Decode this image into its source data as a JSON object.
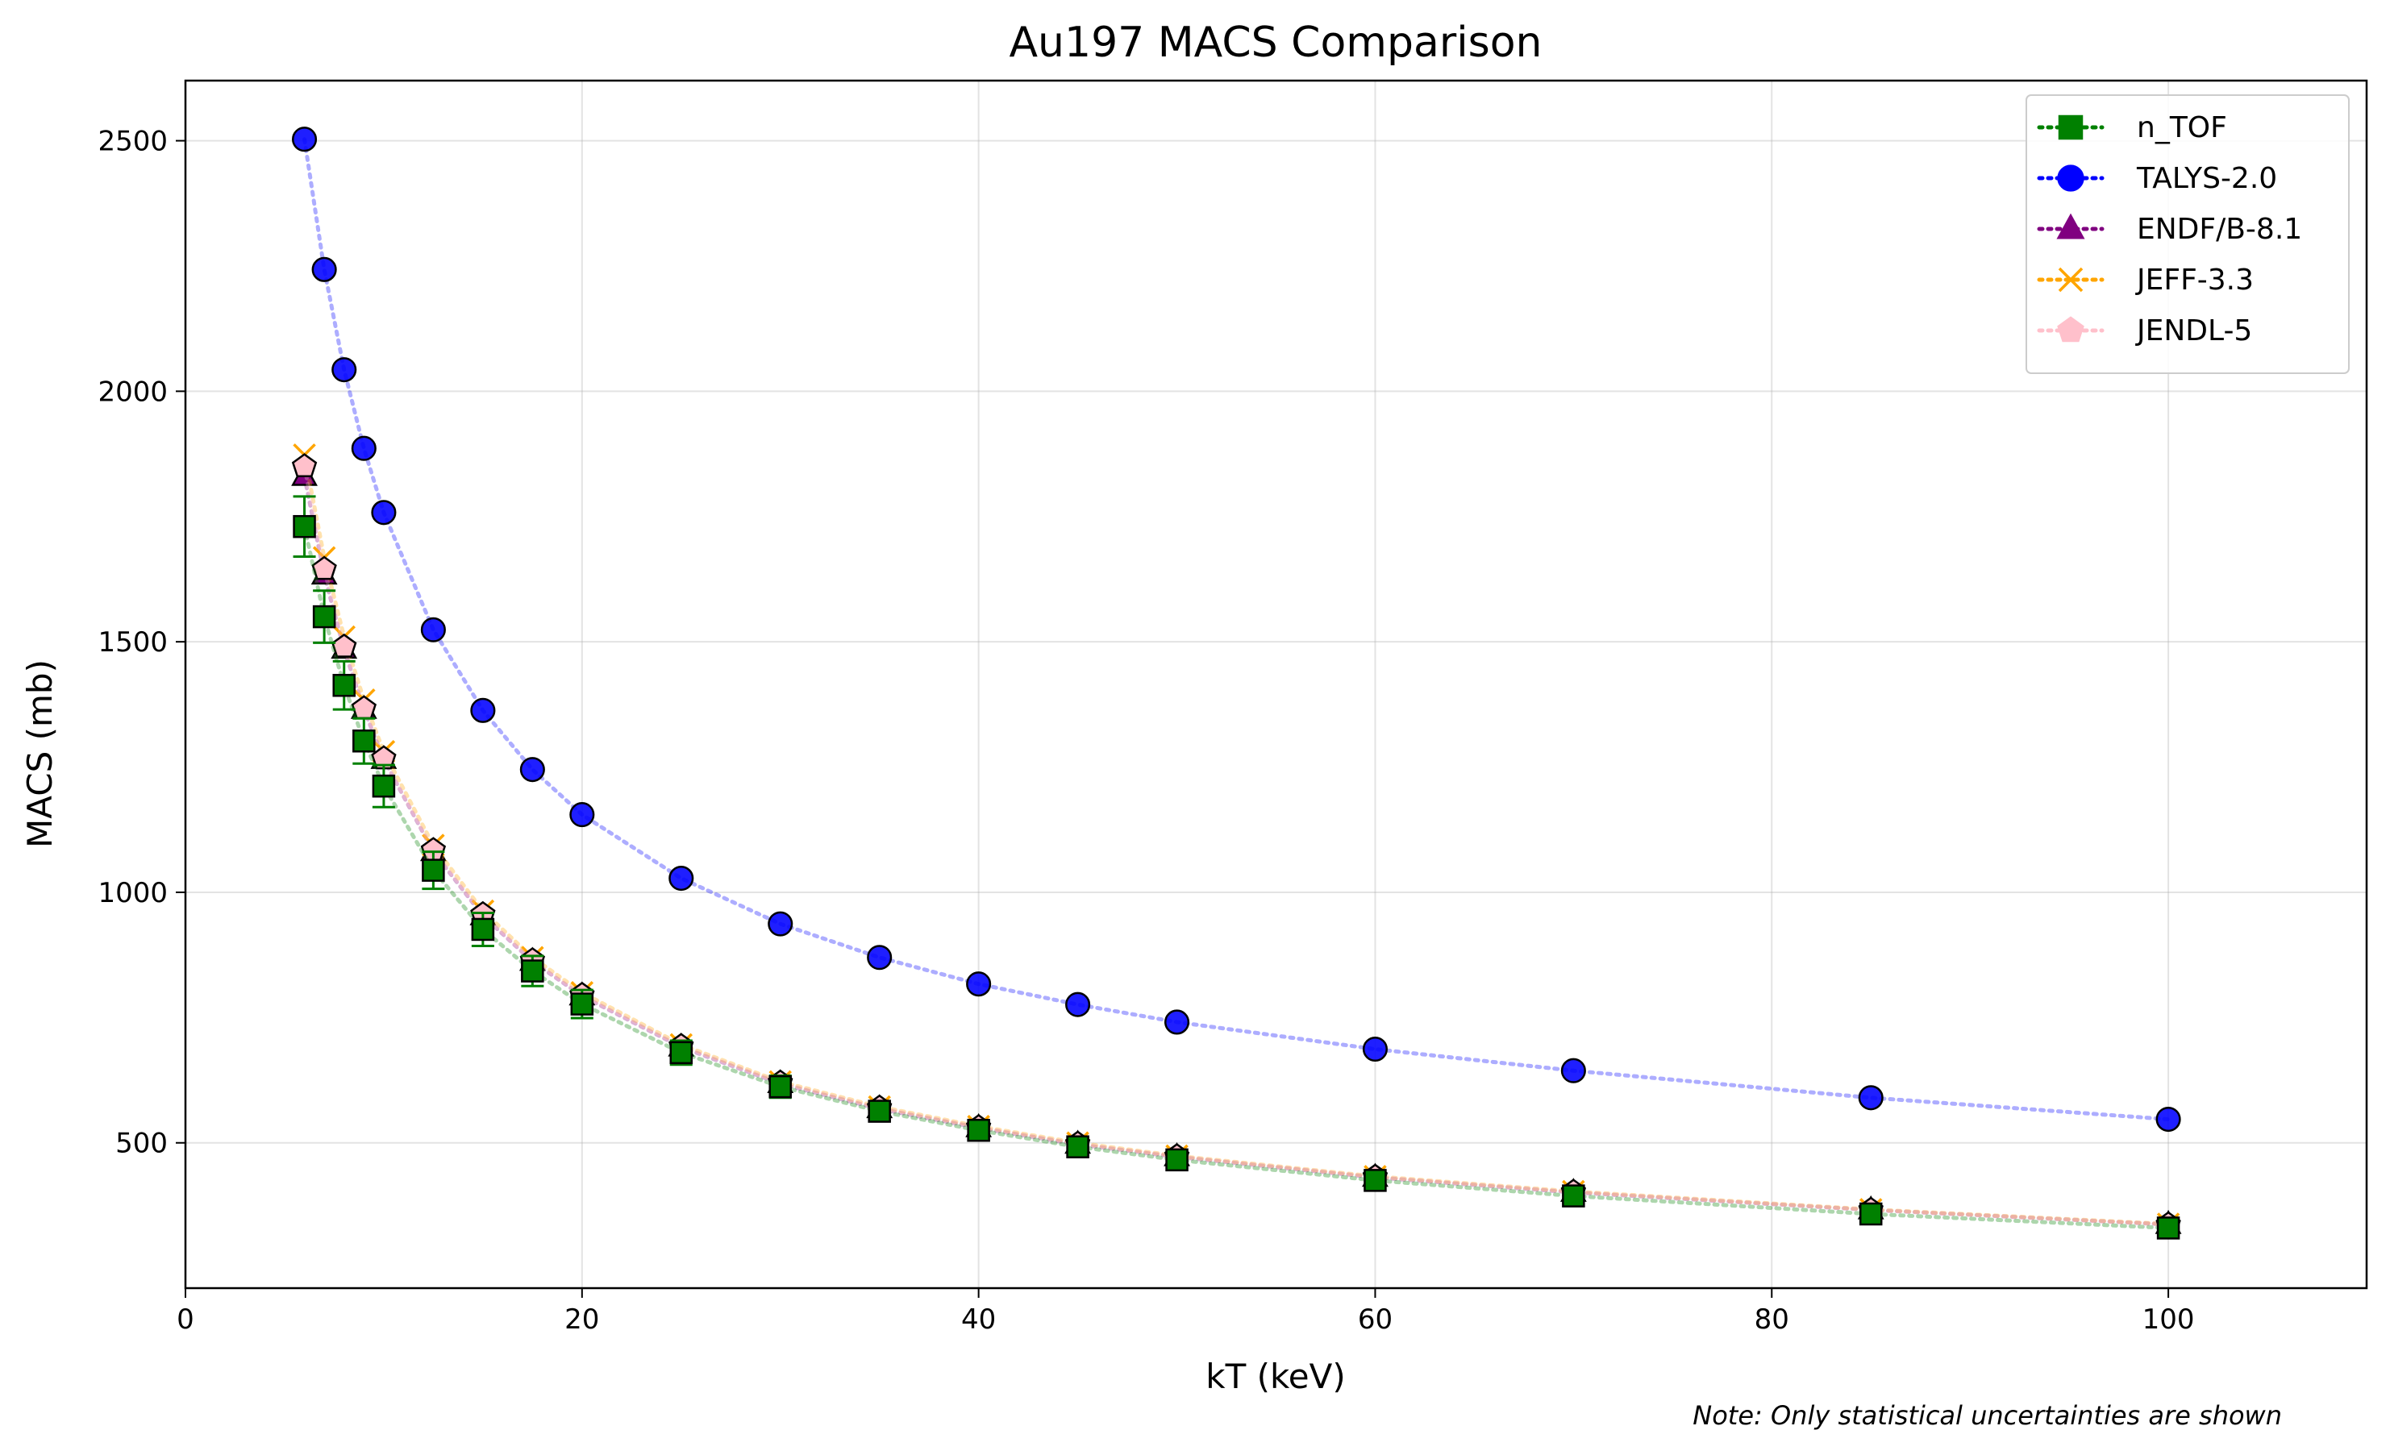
{
  "chart_data": {
    "type": "scatter",
    "title": "Au197 MACS Comparison",
    "xlabel": "kT (keV)",
    "ylabel": "MACS (mb)",
    "xlim": [
      0,
      110
    ],
    "ylim": [
      210,
      2620
    ],
    "xticks": [
      0,
      20,
      40,
      60,
      80,
      100
    ],
    "yticks": [
      500,
      1000,
      1500,
      2000,
      2500
    ],
    "grid": true,
    "legend_position": "top-right",
    "note": "Note: Only statistical uncertainties are shown",
    "x": [
      6,
      7,
      8,
      9,
      10,
      12.5,
      15,
      17.5,
      20,
      25,
      30,
      35,
      40,
      45,
      50,
      60,
      70,
      85,
      100
    ],
    "series": [
      {
        "name": "n_TOF",
        "color": "#008000",
        "marker": "square",
        "values": [
          1730,
          1550,
          1413,
          1302,
          1212,
          1044,
          926,
          843,
          777,
          680,
          612,
          563,
          525,
          492,
          466,
          425,
          394,
          358,
          330
        ],
        "errors": [
          60,
          52,
          48,
          45,
          42,
          37,
          33,
          30,
          28,
          24,
          22,
          20,
          19,
          18,
          17,
          15,
          14,
          13,
          12
        ]
      },
      {
        "name": "TALYS-2.0",
        "color": "#0000ff",
        "marker": "circle",
        "values": [
          2503,
          2243,
          2043,
          1886,
          1758,
          1524,
          1363,
          1245,
          1155,
          1028,
          937,
          870,
          817,
          776,
          741,
          687,
          644,
          590,
          547
        ]
      },
      {
        "name": "ENDF/B-8.1",
        "color": "#800080",
        "marker": "triangle",
        "values": [
          1830,
          1633,
          1485,
          1365,
          1265,
          1081,
          953,
          862,
          793,
          691,
          618,
          568,
          530,
          497,
          472,
          431,
          401,
          366,
          337
        ]
      },
      {
        "name": "JEFF-3.3",
        "color": "#ffa500",
        "marker": "x",
        "values": [
          1873,
          1668,
          1510,
          1384,
          1281,
          1094,
          963,
          870,
          800,
          696,
          622,
          572,
          533,
          500,
          474,
          433,
          403,
          367,
          338
        ]
      },
      {
        "name": "JENDL-5",
        "color": "#ffc0cb",
        "marker": "pentagon",
        "values": [
          1850,
          1645,
          1490,
          1367,
          1267,
          1084,
          956,
          864,
          795,
          693,
          620,
          570,
          531,
          498,
          473,
          432,
          402,
          366,
          337
        ]
      }
    ]
  }
}
